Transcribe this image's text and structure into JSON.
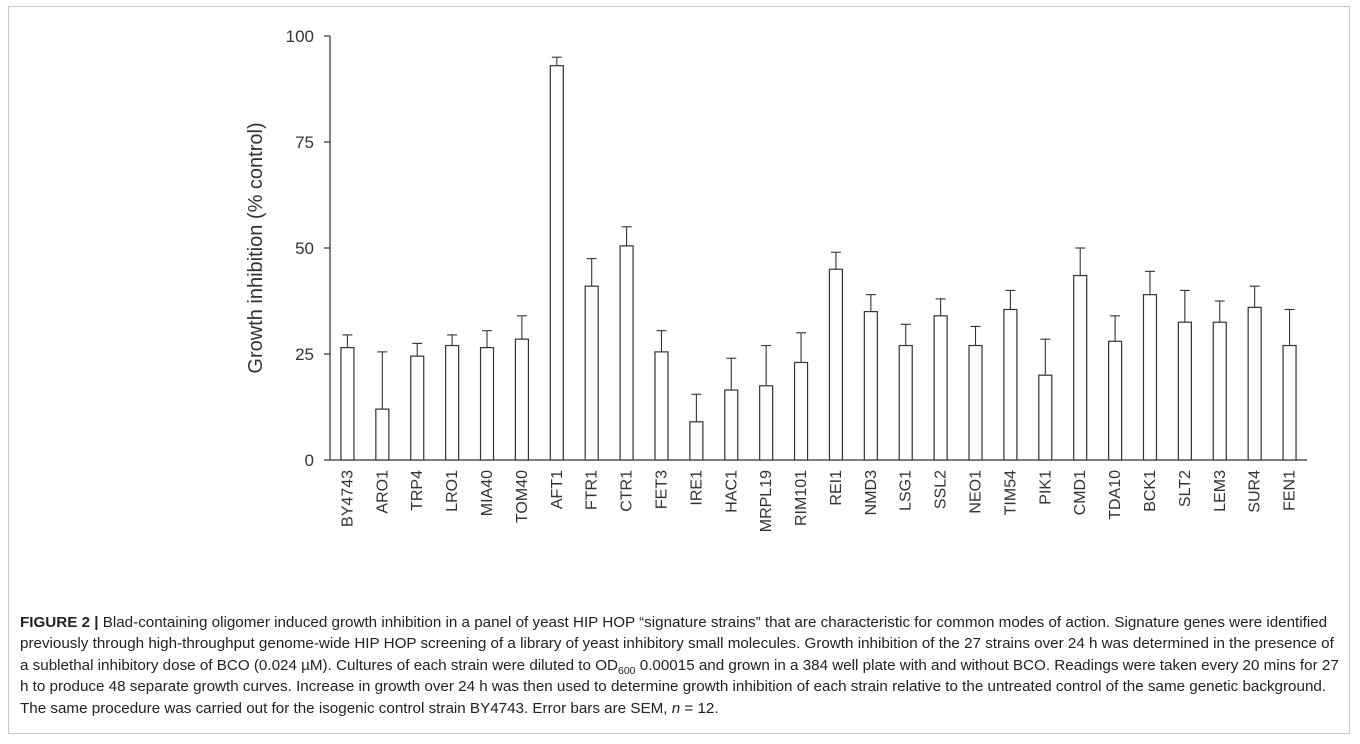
{
  "chart_data": {
    "type": "bar",
    "title": "",
    "xlabel": "",
    "ylabel": "Growth inhibition (% control)",
    "ylim": [
      0,
      100
    ],
    "yticks": [
      0,
      25,
      50,
      75,
      100
    ],
    "grid": false,
    "legend": "none",
    "bar_fill": "#ffffff",
    "bar_stroke": "#333333",
    "categories": [
      "BY4743",
      "ARO1",
      "TRP4",
      "LRO1",
      "MIA40",
      "TOM40",
      "AFT1",
      "FTR1",
      "CTR1",
      "FET3",
      "IRE1",
      "HAC1",
      "MRPL19",
      "RIM101",
      "REI1",
      "NMD3",
      "LSG1",
      "SSL2",
      "NEO1",
      "TIM54",
      "PIK1",
      "CMD1",
      "TDA10",
      "BCK1",
      "SLT2",
      "LEM3",
      "SUR4",
      "FEN1"
    ],
    "values": [
      26.5,
      12,
      24.5,
      27,
      26.5,
      28.5,
      93,
      41,
      50.5,
      25.5,
      9,
      16.5,
      17.5,
      23,
      45,
      35,
      27,
      34,
      27,
      35.5,
      20,
      43.5,
      28,
      39,
      32.5,
      32.5,
      36,
      27
    ],
    "errors": [
      3,
      13.5,
      3,
      2.5,
      4,
      5.5,
      2,
      6.5,
      4.5,
      5,
      6.5,
      7.5,
      9.5,
      7,
      4,
      4,
      5,
      4,
      4.5,
      4.5,
      8.5,
      6.5,
      6,
      5.5,
      7.5,
      5,
      5,
      8.5
    ]
  },
  "caption": {
    "label": "FIGURE 2 |",
    "text_1": " Blad-containing oligomer induced growth inhibition in a panel of yeast HIP HOP “signature strains” that are characteristic for common modes of action. Signature genes were identified previously through high-throughput genome-wide HIP HOP screening of a library of yeast inhibitory small molecules. Growth inhibition of the 27 strains over 24 h was determined in the presence of a sublethal inhibitory dose of BCO (0.024 µM). Cultures of each strain were diluted to OD",
    "subscript": "600",
    "text_2": " 0.00015 and grown in a 384 well plate with and without BCO. Readings were taken every 20 mins for 27 h to produce 48 separate growth curves. Increase in growth over 24 h was then used to determine growth inhibition of each strain relative to the untreated control of the same genetic background. The same procedure was carried out for the isogenic control strain BY4743. Error bars are SEM, ",
    "n_italic": "n",
    "text_3": " = 12."
  }
}
